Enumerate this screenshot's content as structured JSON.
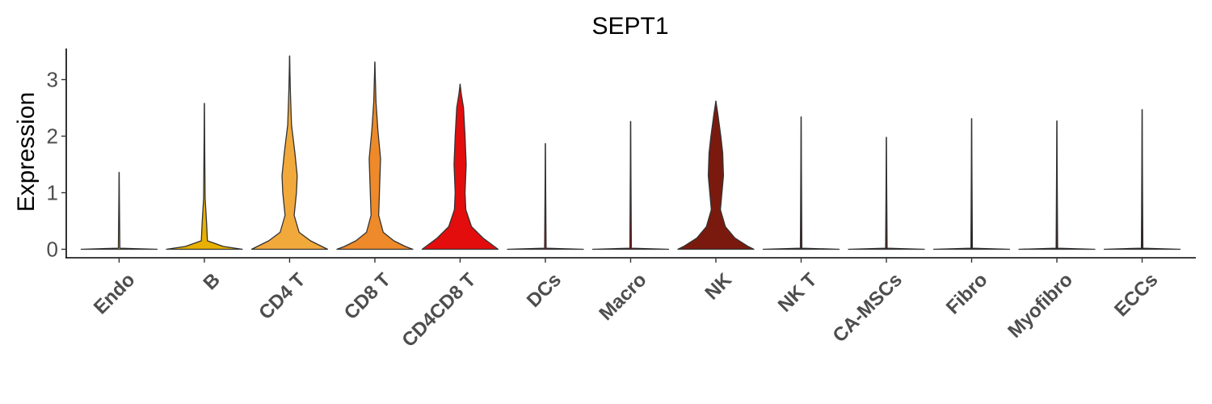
{
  "chart_data": {
    "type": "violin",
    "title": "SEPT1",
    "xlabel": "",
    "ylabel": "Expression",
    "ylim": [
      -0.15,
      3.55
    ],
    "yticks": [
      0,
      1,
      2,
      3
    ],
    "categories": [
      "Endo",
      "B",
      "CD4 T",
      "CD8 T",
      "CD4CD8 T",
      "DCs",
      "Macro",
      "NK",
      "NK T",
      "CA-MSCs",
      "Fibro",
      "Myofibro",
      "ECCs"
    ],
    "colors": [
      "#f2c200",
      "#e8b000",
      "#f2a93b",
      "#ee8a2a",
      "#e30d0d",
      "#d10000",
      "#bf0000",
      "#7a1a0e",
      "#6b0f08",
      "#5a0a05",
      "#4a0804",
      "#3d0603",
      "#300402"
    ],
    "max_values": [
      1.36,
      2.58,
      3.42,
      3.31,
      2.92,
      1.87,
      2.26,
      2.62,
      2.34,
      1.98,
      2.31,
      2.27,
      2.47
    ],
    "density_profiles": [
      [
        [
          0,
          1
        ],
        [
          0.02,
          0.02
        ],
        [
          1.36,
          0
        ]
      ],
      [
        [
          0,
          1
        ],
        [
          0.05,
          0.5
        ],
        [
          0.15,
          0.08
        ],
        [
          0.45,
          0.06
        ],
        [
          0.9,
          0.02
        ],
        [
          2.58,
          0
        ]
      ],
      [
        [
          0,
          1
        ],
        [
          0.05,
          0.85
        ],
        [
          0.15,
          0.55
        ],
        [
          0.3,
          0.25
        ],
        [
          0.6,
          0.12
        ],
        [
          1.0,
          0.18
        ],
        [
          1.3,
          0.2
        ],
        [
          1.7,
          0.14
        ],
        [
          2.2,
          0.05
        ],
        [
          2.8,
          0.02
        ],
        [
          3.42,
          0
        ]
      ],
      [
        [
          0,
          1
        ],
        [
          0.05,
          0.8
        ],
        [
          0.15,
          0.5
        ],
        [
          0.3,
          0.22
        ],
        [
          0.6,
          0.1
        ],
        [
          1.0,
          0.12
        ],
        [
          1.6,
          0.15
        ],
        [
          2.1,
          0.08
        ],
        [
          2.6,
          0.03
        ],
        [
          3.31,
          0
        ]
      ],
      [
        [
          0,
          1
        ],
        [
          0.05,
          0.9
        ],
        [
          0.2,
          0.6
        ],
        [
          0.4,
          0.3
        ],
        [
          0.7,
          0.15
        ],
        [
          1.0,
          0.13
        ],
        [
          1.5,
          0.16
        ],
        [
          2.0,
          0.13
        ],
        [
          2.5,
          0.09
        ],
        [
          2.75,
          0.03
        ],
        [
          2.92,
          0
        ]
      ],
      [
        [
          0,
          1
        ],
        [
          0.02,
          0.02
        ],
        [
          1.87,
          0
        ]
      ],
      [
        [
          0,
          1
        ],
        [
          0.02,
          0.02
        ],
        [
          2.26,
          0
        ]
      ],
      [
        [
          0,
          1
        ],
        [
          0.05,
          0.85
        ],
        [
          0.2,
          0.5
        ],
        [
          0.4,
          0.25
        ],
        [
          0.7,
          0.12
        ],
        [
          1.0,
          0.16
        ],
        [
          1.3,
          0.2
        ],
        [
          1.7,
          0.18
        ],
        [
          2.0,
          0.13
        ],
        [
          2.4,
          0.05
        ],
        [
          2.62,
          0
        ]
      ],
      [
        [
          0,
          1
        ],
        [
          0.02,
          0.02
        ],
        [
          2.34,
          0
        ]
      ],
      [
        [
          0,
          1
        ],
        [
          0.02,
          0.02
        ],
        [
          1.98,
          0
        ]
      ],
      [
        [
          0,
          1
        ],
        [
          0.02,
          0.02
        ],
        [
          2.31,
          0
        ]
      ],
      [
        [
          0,
          1
        ],
        [
          0.02,
          0.02
        ],
        [
          2.27,
          0
        ]
      ],
      [
        [
          0,
          1
        ],
        [
          0.02,
          0.02
        ],
        [
          2.47,
          0
        ]
      ]
    ],
    "grid": false,
    "legend": "none"
  }
}
